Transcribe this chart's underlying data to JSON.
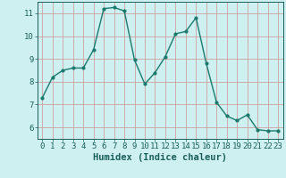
{
  "x": [
    0,
    1,
    2,
    3,
    4,
    5,
    6,
    7,
    8,
    9,
    10,
    11,
    12,
    13,
    14,
    15,
    16,
    17,
    18,
    19,
    20,
    21,
    22,
    23
  ],
  "y": [
    7.3,
    8.2,
    8.5,
    8.6,
    8.6,
    9.4,
    11.2,
    11.25,
    11.1,
    8.95,
    7.9,
    8.4,
    9.1,
    10.1,
    10.2,
    10.8,
    8.8,
    7.1,
    6.5,
    6.3,
    6.55,
    5.9,
    5.85,
    5.85
  ],
  "line_color": "#1a7a6e",
  "marker": "o",
  "marker_size": 2,
  "bg_color": "#cff0f0",
  "grid_color": "#d0a0a0",
  "xlabel": "Humidex (Indice chaleur)",
  "ylim": [
    5.5,
    11.5
  ],
  "xlim": [
    -0.5,
    23.5
  ],
  "yticks": [
    6,
    7,
    8,
    9,
    10,
    11
  ],
  "xticks": [
    0,
    1,
    2,
    3,
    4,
    5,
    6,
    7,
    8,
    9,
    10,
    11,
    12,
    13,
    14,
    15,
    16,
    17,
    18,
    19,
    20,
    21,
    22,
    23
  ],
  "font_color": "#1a5f5a",
  "tick_label_size": 6.5,
  "xlabel_size": 7.5,
  "linewidth": 1.0
}
